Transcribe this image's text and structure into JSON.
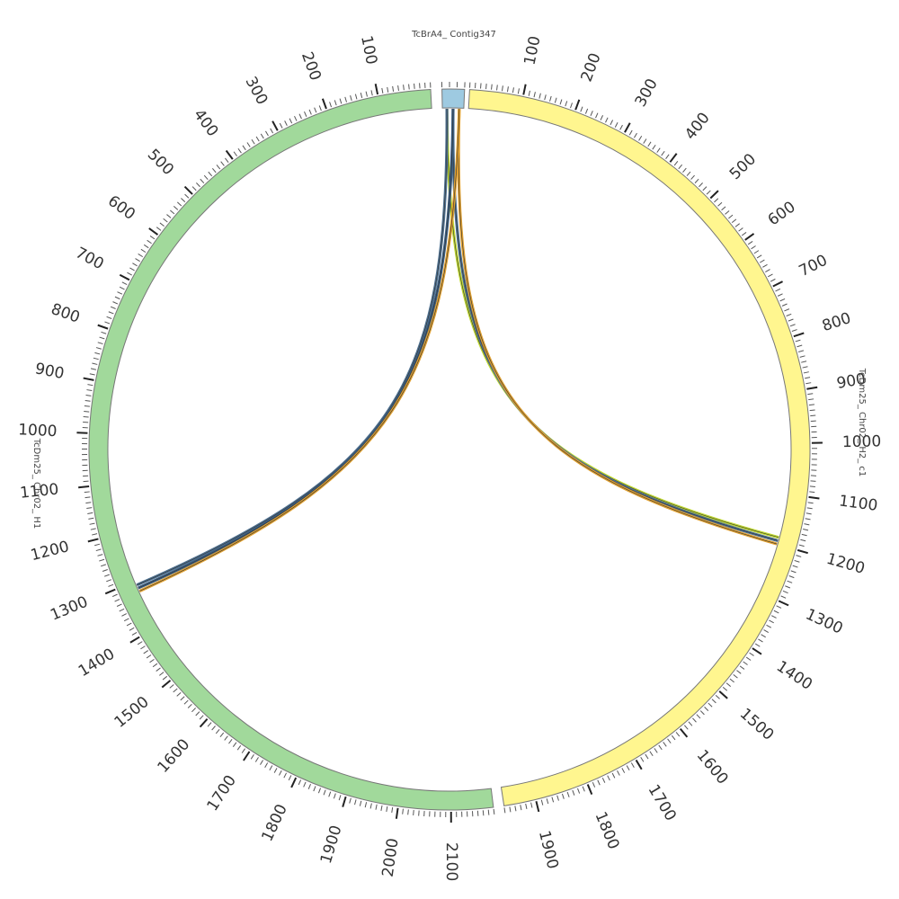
{
  "diagram": {
    "type": "circos",
    "tick_step": 100,
    "minor_tick_step": 10,
    "segments": [
      {
        "id": "contig",
        "label": "TcBrA4_ Contig347",
        "color": "#9ecae1",
        "length": 30,
        "tick_labels": []
      },
      {
        "id": "h2",
        "label": "TcDm25_ Chr02_ H2_ c1",
        "color": "#fff68f",
        "length": 1960,
        "tick_labels": [
          "100",
          "200",
          "300",
          "400",
          "500",
          "600",
          "700",
          "800",
          "900",
          "1000",
          "1100",
          "1200",
          "1300",
          "1400",
          "1500",
          "1600",
          "1700",
          "1800",
          "1900"
        ]
      },
      {
        "id": "h1",
        "label": "TcDm25_ Chr02_ H1",
        "color": "#a1d99b",
        "length": 2180,
        "tick_labels": [
          "100",
          "200",
          "300",
          "400",
          "500",
          "600",
          "700",
          "800",
          "900",
          "1000",
          "1100",
          "1200",
          "1300",
          "1400",
          "1500",
          "1600",
          "1700",
          "1800",
          "1900",
          "2000",
          "2100"
        ]
      }
    ],
    "links": [
      {
        "from": "contig",
        "from_range": [
          2,
          28
        ],
        "to": "h2",
        "to_range": [
          1183,
          1203
        ],
        "colors": [
          "#c0d930",
          "#4c6f8f",
          "#e0a030"
        ]
      },
      {
        "from": "contig",
        "from_range": [
          2,
          28
        ],
        "to": "h1",
        "to_range": [
          1305,
          1325
        ],
        "colors": [
          "#4c6f8f",
          "#3a5d80",
          "#e0a030"
        ]
      }
    ]
  }
}
